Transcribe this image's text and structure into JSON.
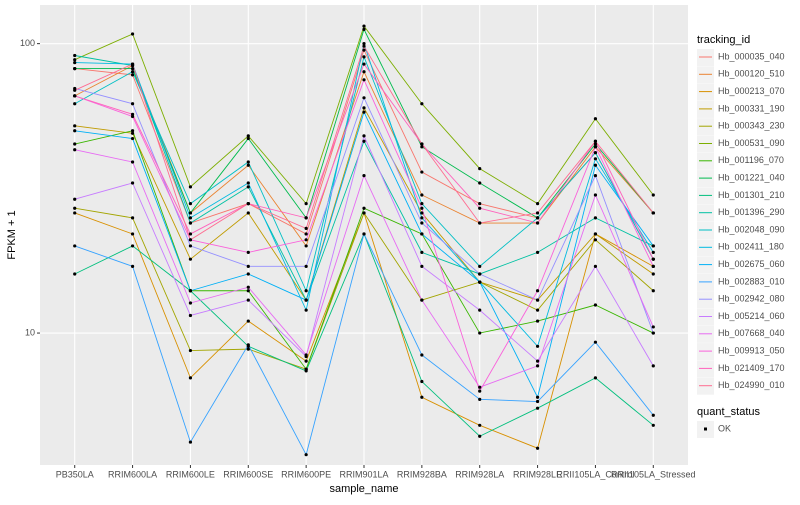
{
  "chart_data": {
    "type": "line",
    "x_label": "sample_name",
    "y_label": "FPKM + 1",
    "log_y": true,
    "grid": true,
    "categories": [
      "PB350LA",
      "RRIM600LA",
      "RRIM600LE",
      "RRIM600SE",
      "RRIM600PE",
      "RRIM901LA",
      "RRIM928BA",
      "RRIM928LA",
      "RRIM928LE",
      "RRII105LA_Control",
      "RRII105LA_Stressed"
    ],
    "ylim": [
      3.5,
      136
    ],
    "yticks": [
      10,
      100
    ],
    "legend_title": "tracking_id",
    "legend_position": "right",
    "point_legend": {
      "title": "quant_status",
      "levels": [
        "OK"
      ],
      "color": "#000000"
    },
    "series": [
      {
        "name": "Hb_000035_040",
        "color": "#F8766D",
        "values": [
          82,
          78,
          24,
          28,
          22,
          95,
          36,
          28,
          25,
          42,
          18
        ]
      },
      {
        "name": "Hb_000120_510",
        "color": "#EA8331",
        "values": [
          66,
          84,
          26,
          38,
          20,
          80,
          30,
          24,
          24,
          44,
          26
        ]
      },
      {
        "name": "Hb_000213_070",
        "color": "#D89000",
        "values": [
          26,
          22,
          7,
          11,
          8,
          26,
          6,
          4.8,
          4,
          22,
          17
        ]
      },
      {
        "name": "Hb_000331_190",
        "color": "#C09B00",
        "values": [
          52,
          49,
          18,
          26,
          13,
          60,
          26,
          15,
          13,
          22,
          16
        ]
      },
      {
        "name": "Hb_000343_230",
        "color": "#A3A500",
        "values": [
          27,
          25,
          8.7,
          8.8,
          7.5,
          26,
          13,
          15,
          12,
          21,
          14
        ]
      },
      {
        "name": "Hb_000531_090",
        "color": "#7CAE00",
        "values": [
          88,
          108,
          32,
          48,
          28,
          115,
          62,
          37,
          28,
          55,
          30
        ]
      },
      {
        "name": "Hb_001196_070",
        "color": "#39B600",
        "values": [
          45,
          50,
          14,
          14,
          7.5,
          27,
          22,
          10,
          11,
          12.5,
          10
        ]
      },
      {
        "name": "Hb_001221_040",
        "color": "#00BB4E",
        "values": [
          82,
          82,
          26,
          47,
          25,
          112,
          44,
          33,
          25,
          45,
          26
        ]
      },
      {
        "name": "Hb_001301_210",
        "color": "#00BF7D",
        "values": [
          16,
          20,
          14,
          9,
          7.4,
          22,
          6.8,
          4.4,
          5.5,
          7,
          4.8
        ]
      },
      {
        "name": "Hb_001396_290",
        "color": "#00C1A3",
        "values": [
          91,
          84,
          24,
          32,
          13,
          46,
          19,
          16,
          19,
          25,
          20
        ]
      },
      {
        "name": "Hb_002048_090",
        "color": "#00BFC4",
        "values": [
          62,
          80,
          28,
          39,
          14,
          90,
          28,
          17,
          25,
          42,
          18
        ]
      },
      {
        "name": "Hb_002411_180",
        "color": "#00BAE0",
        "values": [
          86,
          85,
          25,
          33,
          12,
          100,
          25,
          15,
          9,
          40,
          19
        ]
      },
      {
        "name": "Hb_002675_060",
        "color": "#00B0F6",
        "values": [
          50,
          47,
          14,
          16,
          13,
          58,
          22,
          15,
          6,
          38,
          20
        ]
      },
      {
        "name": "Hb_002883_010",
        "color": "#35A2FF",
        "values": [
          20,
          17,
          4.2,
          9.1,
          3.8,
          22,
          8.4,
          5.9,
          5.8,
          9.3,
          5.2
        ]
      },
      {
        "name": "Hb_002942_080",
        "color": "#9590FF",
        "values": [
          70,
          62,
          20,
          17,
          17,
          65,
          24,
          16,
          13,
          35,
          10
        ]
      },
      {
        "name": "Hb_005214_060",
        "color": "#C77CFF",
        "values": [
          29,
          33,
          11.5,
          13,
          8.3,
          48,
          17,
          12,
          8,
          17,
          7.7
        ]
      },
      {
        "name": "Hb_007668_040",
        "color": "#E76BF3",
        "values": [
          43,
          39,
          12.7,
          14.4,
          8.4,
          35,
          13,
          6.5,
          7.7,
          30,
          10.5
        ]
      },
      {
        "name": "Hb_009913_050",
        "color": "#FA62DB",
        "values": [
          66,
          56,
          21,
          19,
          21,
          75,
          27,
          6.3,
          14,
          44,
          17
        ]
      },
      {
        "name": "Hb_021409_170",
        "color": "#FF62BC",
        "values": [
          66,
          57,
          22,
          28,
          25,
          85,
          45,
          27,
          24,
          46,
          18
        ]
      },
      {
        "name": "Hb_024990_010",
        "color": "#FF6C91",
        "values": [
          69,
          85,
          21,
          28,
          23,
          98,
          45,
          24,
          26,
          46,
          26
        ]
      }
    ]
  }
}
